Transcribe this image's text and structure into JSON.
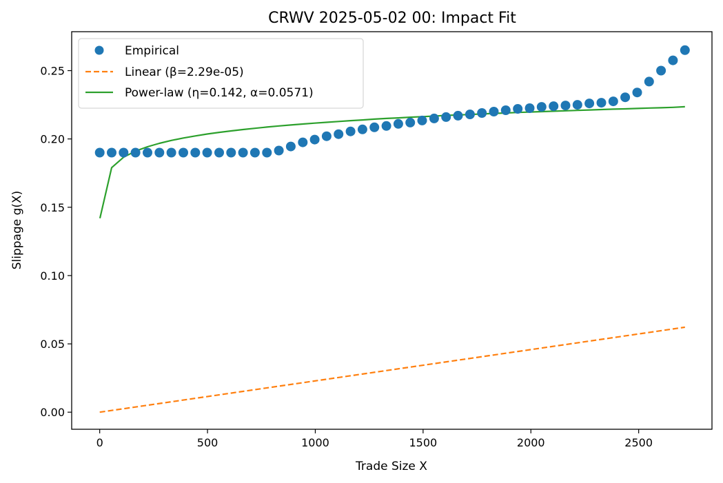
{
  "chart_data": {
    "type": "line",
    "title": "CRWV 2025-05-02 00: Impact Fit",
    "xlabel": "Trade Size X",
    "ylabel": "Slippage g(X)",
    "xlim": [
      -130,
      2840
    ],
    "ylim": [
      -0.0125,
      0.2785
    ],
    "xticks": [
      0,
      500,
      1000,
      1500,
      2000,
      2500
    ],
    "xtick_labels": [
      "0",
      "500",
      "1000",
      "1500",
      "2000",
      "2500"
    ],
    "yticks": [
      0.0,
      0.05,
      0.1,
      0.15,
      0.2,
      0.25
    ],
    "ytick_labels": [
      "0.00",
      "0.05",
      "0.10",
      "0.15",
      "0.20",
      "0.25"
    ],
    "grid": false,
    "legend_position": "top-left",
    "colors": {
      "empirical": "#1f77b4",
      "linear": "#ff7f0e",
      "power": "#2ca02c"
    },
    "series": [
      {
        "name": "Empirical",
        "style": "markers",
        "x": [
          0,
          55.4,
          110.8,
          166.2,
          221.6,
          277,
          332.4,
          387.8,
          443.2,
          498.6,
          554,
          609.4,
          664.8,
          720.2,
          775.6,
          831,
          886.4,
          941.8,
          997.2,
          1052.6,
          1108,
          1163.4,
          1218.8,
          1274.2,
          1329.6,
          1385,
          1440.4,
          1495.8,
          1551.2,
          1606.6,
          1662,
          1717.4,
          1772.8,
          1828.2,
          1883.6,
          1939,
          1994.4,
          2049.8,
          2105.2,
          2160.6,
          2216,
          2271.4,
          2326.8,
          2382.2,
          2437.6,
          2493,
          2548.4,
          2603.8,
          2659.2,
          2714.6
        ],
        "y": [
          0.19,
          0.19,
          0.19,
          0.19,
          0.19,
          0.19,
          0.19,
          0.19,
          0.19,
          0.19,
          0.19,
          0.19,
          0.19,
          0.19,
          0.19,
          0.1915,
          0.1945,
          0.1975,
          0.1995,
          0.202,
          0.2035,
          0.2055,
          0.207,
          0.2085,
          0.2095,
          0.211,
          0.212,
          0.2135,
          0.215,
          0.216,
          0.217,
          0.218,
          0.219,
          0.22,
          0.221,
          0.222,
          0.2225,
          0.2235,
          0.224,
          0.2245,
          0.225,
          0.226,
          0.2265,
          0.2275,
          0.2305,
          0.234,
          0.242,
          0.25,
          0.2575,
          0.265
        ]
      },
      {
        "name": "Linear (β=2.29e-05)",
        "style": "dashed",
        "x": [
          0,
          2714.6
        ],
        "y": [
          0.0,
          0.0622
        ]
      },
      {
        "name": "Power-law (η=0.142, α=0.0571)",
        "style": "solid",
        "x": [
          1,
          55.4,
          110.8,
          166.2,
          221.6,
          277,
          332.4,
          387.8,
          443.2,
          498.6,
          554,
          609.4,
          664.8,
          720.2,
          775.6,
          831,
          886.4,
          941.8,
          997.2,
          1052.6,
          1108,
          1163.4,
          1218.8,
          1274.2,
          1329.6,
          1385,
          1440.4,
          1495.8,
          1551.2,
          1606.6,
          1662,
          1717.4,
          1772.8,
          1828.2,
          1883.6,
          1939,
          1994.4,
          2049.8,
          2105.2,
          2160.6,
          2216,
          2271.4,
          2326.8,
          2382.2,
          2437.6,
          2493,
          2548.4,
          2603.8,
          2659.2,
          2714.6
        ],
        "y": [
          0.142,
          0.179,
          0.1866,
          0.1911,
          0.1943,
          0.1968,
          0.1989,
          0.2007,
          0.2022,
          0.2036,
          0.2048,
          0.2059,
          0.2069,
          0.2078,
          0.2087,
          0.2095,
          0.2102,
          0.2109,
          0.2116,
          0.2122,
          0.2128,
          0.2134,
          0.2139,
          0.2145,
          0.215,
          0.2154,
          0.2159,
          0.2163,
          0.2167,
          0.2172,
          0.2176,
          0.2179,
          0.2183,
          0.2187,
          0.219,
          0.2194,
          0.2197,
          0.22,
          0.2203,
          0.2206,
          0.2209,
          0.2212,
          0.2215,
          0.2218,
          0.222,
          0.2223,
          0.2226,
          0.2228,
          0.2231,
          0.2236
        ]
      }
    ]
  }
}
